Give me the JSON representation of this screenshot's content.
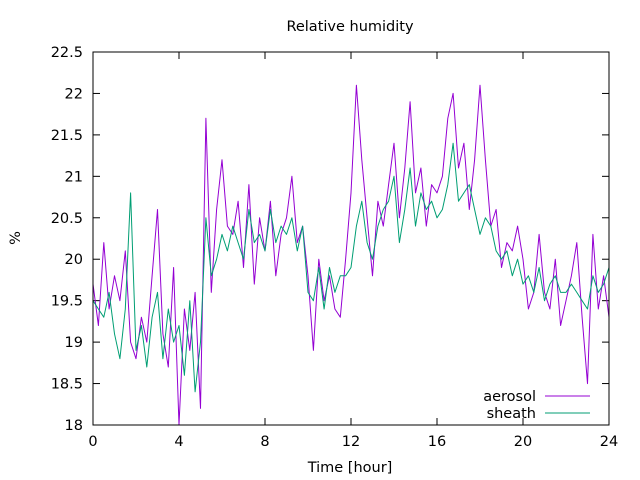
{
  "chart_data": {
    "type": "line",
    "title": "Relative humidity",
    "xlabel": "Time [hour]",
    "ylabel": "%",
    "xlim": [
      0,
      24
    ],
    "ylim": [
      18,
      22.5
    ],
    "xticks": [
      0,
      4,
      8,
      12,
      16,
      20,
      24
    ],
    "yticks": [
      18,
      18.5,
      19,
      19.5,
      20,
      20.5,
      21,
      21.5,
      22,
      22.5
    ],
    "grid": false,
    "legend_position": "bottom-right",
    "series": [
      {
        "name": "aerosol",
        "color": "#9400d3",
        "x": [
          0,
          0.25,
          0.5,
          0.75,
          1,
          1.25,
          1.5,
          1.75,
          2,
          2.25,
          2.5,
          2.75,
          3,
          3.25,
          3.5,
          3.75,
          4,
          4.25,
          4.5,
          4.75,
          5,
          5.25,
          5.5,
          5.75,
          6,
          6.25,
          6.5,
          6.75,
          7,
          7.25,
          7.5,
          7.75,
          8,
          8.25,
          8.5,
          8.75,
          9,
          9.25,
          9.5,
          9.75,
          10,
          10.25,
          10.5,
          10.75,
          11,
          11.25,
          11.5,
          11.75,
          12,
          12.25,
          12.5,
          12.75,
          13,
          13.25,
          13.5,
          13.75,
          14,
          14.25,
          14.5,
          14.75,
          15,
          15.25,
          15.5,
          15.75,
          16,
          16.25,
          16.5,
          16.75,
          17,
          17.25,
          17.5,
          17.75,
          18,
          18.25,
          18.5,
          18.75,
          19,
          19.25,
          19.5,
          19.75,
          20,
          20.25,
          20.5,
          20.75,
          21,
          21.25,
          21.5,
          21.75,
          22,
          22.25,
          22.5,
          22.75,
          23,
          23.25,
          23.5,
          23.75,
          24
        ],
        "values": [
          19.7,
          19.2,
          20.2,
          19.4,
          19.8,
          19.5,
          20.1,
          19.0,
          18.8,
          19.3,
          19.0,
          19.8,
          20.6,
          19.1,
          18.7,
          19.9,
          18.0,
          19.4,
          18.9,
          19.6,
          18.2,
          21.7,
          19.6,
          20.6,
          21.2,
          20.4,
          20.3,
          20.7,
          19.9,
          20.9,
          19.7,
          20.5,
          20.1,
          20.7,
          19.8,
          20.3,
          20.5,
          21.0,
          20.2,
          20.4,
          19.8,
          18.9,
          20.0,
          19.5,
          19.8,
          19.4,
          19.3,
          20.0,
          20.8,
          22.1,
          21.2,
          20.5,
          19.8,
          20.7,
          20.4,
          20.9,
          21.4,
          20.5,
          21.1,
          21.9,
          20.8,
          21.1,
          20.4,
          20.9,
          20.8,
          21.0,
          21.7,
          22.0,
          21.1,
          21.4,
          20.6,
          21.2,
          22.1,
          21.2,
          20.4,
          20.6,
          19.9,
          20.2,
          20.1,
          20.4,
          20.0,
          19.4,
          19.6,
          20.3,
          19.6,
          19.4,
          20.0,
          19.2,
          19.5,
          19.8,
          20.2,
          19.3,
          18.5,
          20.3,
          19.4,
          19.8,
          19.3
        ]
      },
      {
        "name": "sheath",
        "color": "#009e73",
        "x": [
          0,
          0.25,
          0.5,
          0.75,
          1,
          1.25,
          1.5,
          1.75,
          2,
          2.25,
          2.5,
          2.75,
          3,
          3.25,
          3.5,
          3.75,
          4,
          4.25,
          4.5,
          4.75,
          5,
          5.25,
          5.5,
          5.75,
          6,
          6.25,
          6.5,
          6.75,
          7,
          7.25,
          7.5,
          7.75,
          8,
          8.25,
          8.5,
          8.75,
          9,
          9.25,
          9.5,
          9.75,
          10,
          10.25,
          10.5,
          10.75,
          11,
          11.25,
          11.5,
          11.75,
          12,
          12.25,
          12.5,
          12.75,
          13,
          13.25,
          13.5,
          13.75,
          14,
          14.25,
          14.5,
          14.75,
          15,
          15.25,
          15.5,
          15.75,
          16,
          16.25,
          16.5,
          16.75,
          17,
          17.25,
          17.5,
          17.75,
          18,
          18.25,
          18.5,
          18.75,
          19,
          19.25,
          19.5,
          19.75,
          20,
          20.25,
          20.5,
          20.75,
          21,
          21.25,
          21.5,
          21.75,
          22,
          22.25,
          22.5,
          22.75,
          23,
          23.25,
          23.5,
          23.75,
          24
        ],
        "values": [
          19.5,
          19.4,
          19.3,
          19.6,
          19.1,
          18.8,
          19.4,
          20.8,
          18.9,
          19.2,
          18.7,
          19.3,
          19.6,
          18.8,
          19.4,
          19.0,
          19.2,
          18.6,
          19.5,
          18.4,
          19.0,
          20.5,
          19.8,
          20.0,
          20.3,
          20.1,
          20.4,
          20.2,
          20.0,
          20.6,
          20.2,
          20.3,
          20.1,
          20.6,
          20.2,
          20.4,
          20.3,
          20.5,
          20.1,
          20.4,
          19.6,
          19.5,
          19.9,
          19.4,
          19.9,
          19.6,
          19.8,
          19.8,
          19.9,
          20.4,
          20.7,
          20.2,
          20.0,
          20.4,
          20.6,
          20.7,
          21.0,
          20.2,
          20.6,
          21.1,
          20.4,
          20.8,
          20.6,
          20.7,
          20.5,
          20.6,
          20.9,
          21.4,
          20.7,
          20.8,
          20.9,
          20.6,
          20.3,
          20.5,
          20.4,
          20.1,
          20.0,
          20.1,
          19.8,
          20.0,
          19.7,
          19.8,
          19.6,
          19.9,
          19.5,
          19.7,
          19.8,
          19.6,
          19.6,
          19.7,
          19.6,
          19.5,
          19.4,
          19.8,
          19.6,
          19.7,
          19.9
        ]
      }
    ]
  }
}
